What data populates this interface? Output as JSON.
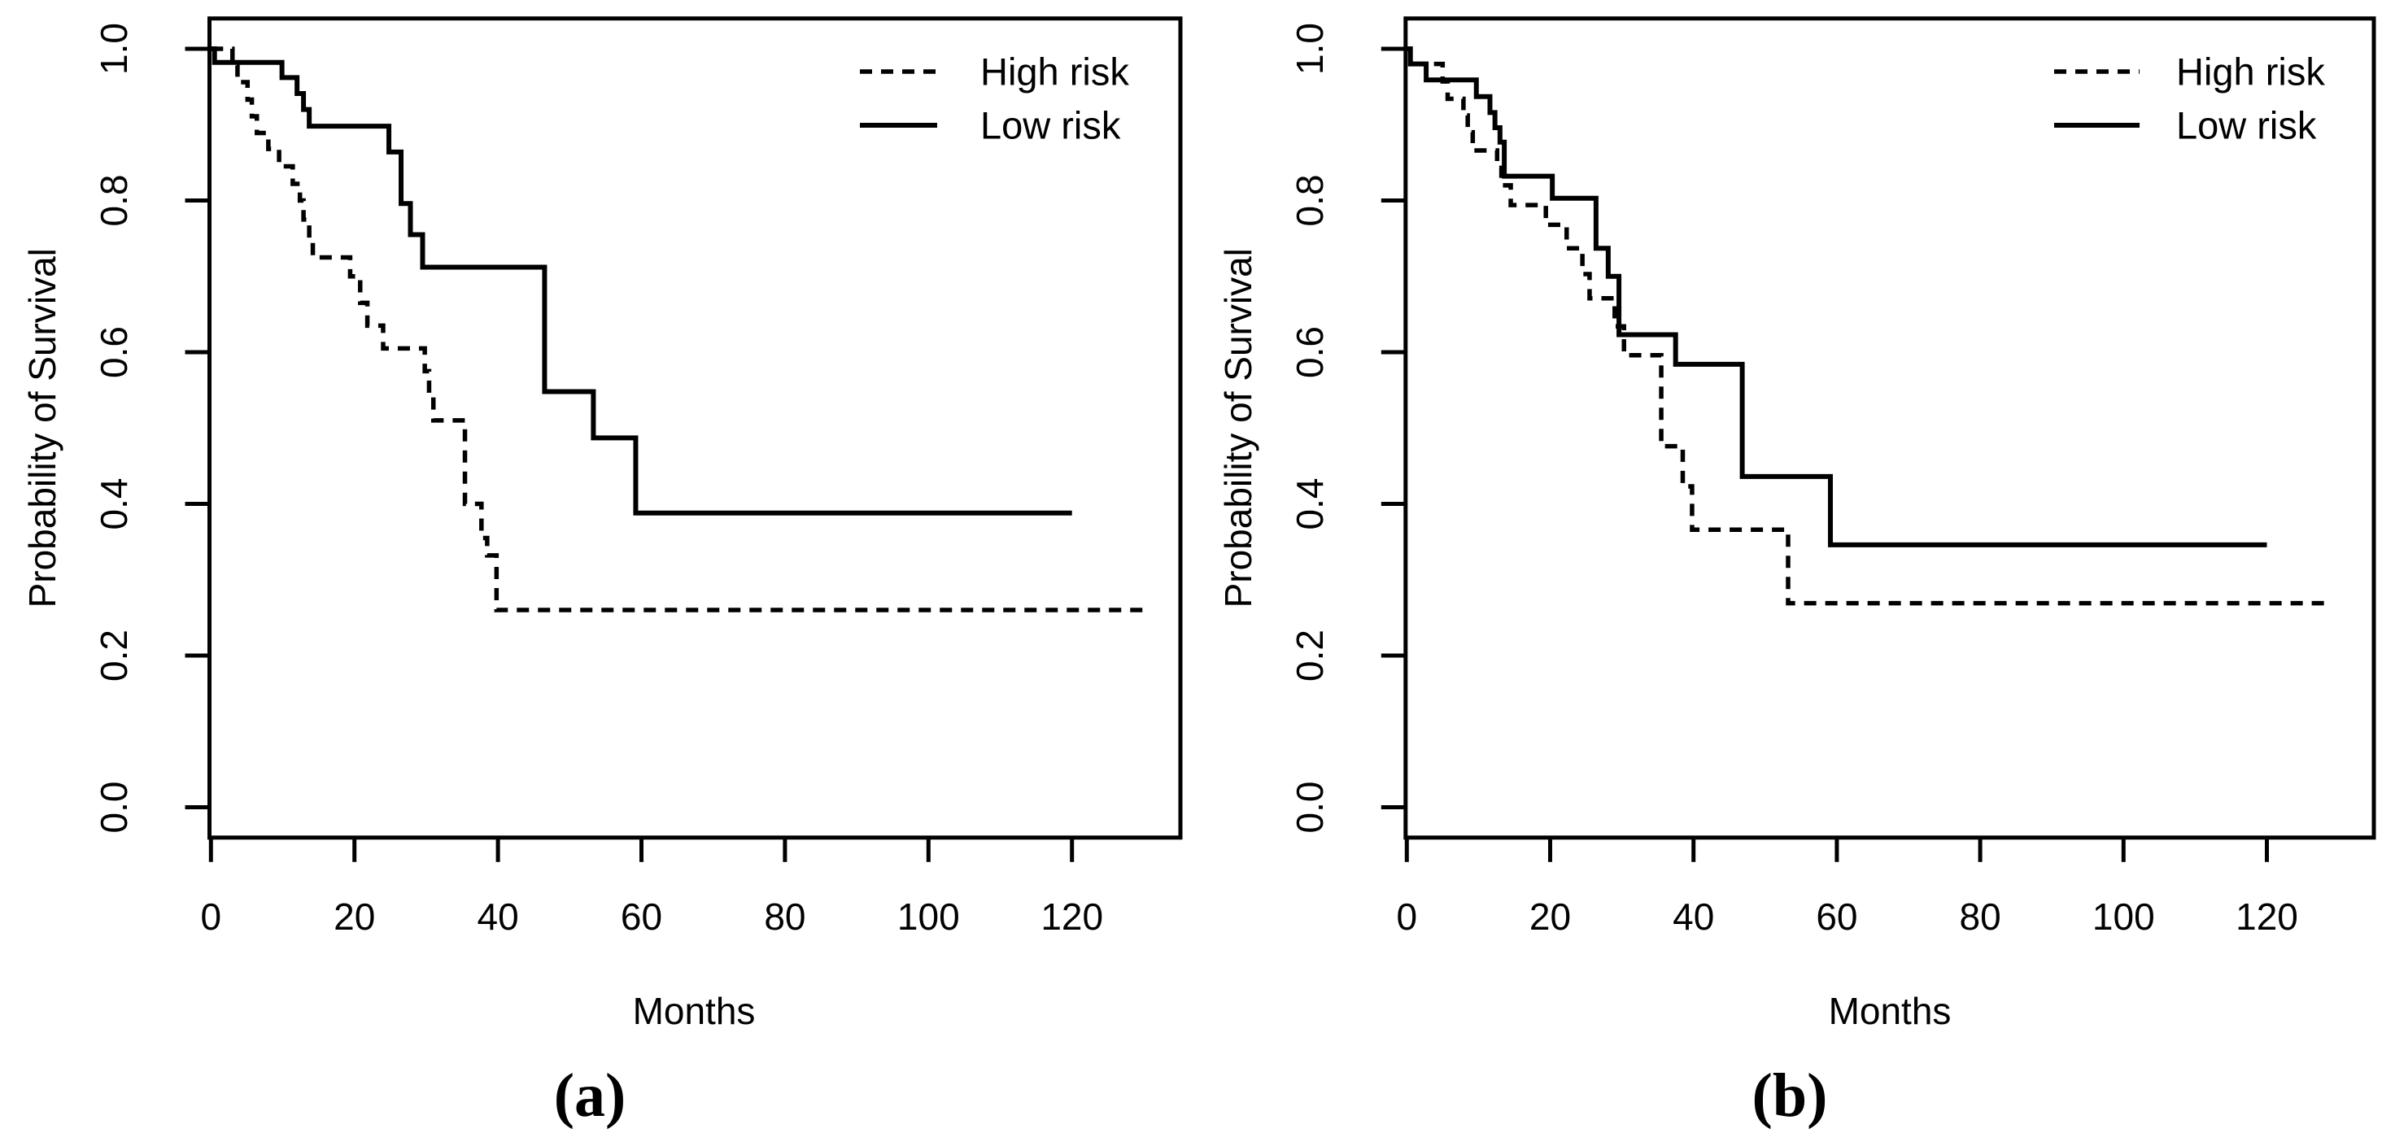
{
  "figure": {
    "background": "#ffffff",
    "ink_color": "#000000"
  },
  "chart_data": [
    {
      "type": "line",
      "subtype": "kaplan-meier-step",
      "panel_label": "(a)",
      "xlabel": "Months",
      "ylabel": "Probability of Survival",
      "x_ticks": [
        0,
        20,
        40,
        60,
        80,
        100,
        120
      ],
      "y_ticks": [
        0.0,
        0.2,
        0.4,
        0.6,
        0.8,
        1.0
      ],
      "xlim": [
        0,
        135
      ],
      "ylim": [
        0,
        1
      ],
      "grid": false,
      "legend_position": "top-right",
      "legend": [
        {
          "label": "High risk",
          "style": "dashed"
        },
        {
          "label": "Low risk",
          "style": "solid"
        }
      ],
      "series": [
        {
          "name": "High risk",
          "style": "dashed",
          "end": 130,
          "points": [
            [
              0,
              1.0
            ],
            [
              3,
              0.978
            ],
            [
              3.7,
              0.956
            ],
            [
              5.1,
              0.933
            ],
            [
              5.7,
              0.911
            ],
            [
              6.4,
              0.889
            ],
            [
              8,
              0.868
            ],
            [
              9.5,
              0.845
            ],
            [
              11.4,
              0.822
            ],
            [
              12.4,
              0.8
            ],
            [
              12.9,
              0.775
            ],
            [
              13.7,
              0.75
            ],
            [
              14.2,
              0.725
            ],
            [
              19.4,
              0.7
            ],
            [
              20.8,
              0.665
            ],
            [
              21.8,
              0.635
            ],
            [
              24,
              0.605
            ],
            [
              29.8,
              0.575
            ],
            [
              30.4,
              0.545
            ],
            [
              31,
              0.51
            ],
            [
              35.4,
              0.4
            ],
            [
              37.7,
              0.355
            ],
            [
              38.5,
              0.332
            ],
            [
              39.8,
              0.26
            ]
          ]
        },
        {
          "name": "Low risk",
          "style": "solid",
          "end": 120,
          "points": [
            [
              0,
              1.0
            ],
            [
              0.5,
              0.982
            ],
            [
              9.9,
              0.962
            ],
            [
              12,
              0.941
            ],
            [
              12.9,
              0.92
            ],
            [
              13.7,
              0.898
            ],
            [
              24.8,
              0.864
            ],
            [
              26.5,
              0.796
            ],
            [
              27.8,
              0.755
            ],
            [
              29.5,
              0.712
            ],
            [
              46.5,
              0.548
            ],
            [
              53.3,
              0.487
            ],
            [
              59.2,
              0.388
            ]
          ]
        }
      ]
    },
    {
      "type": "line",
      "subtype": "kaplan-meier-step",
      "panel_label": "(b)",
      "xlabel": "Months",
      "ylabel": "Probability of Survival",
      "x_ticks": [
        0,
        20,
        40,
        60,
        80,
        100,
        120
      ],
      "y_ticks": [
        0.0,
        0.2,
        0.4,
        0.6,
        0.8,
        1.0
      ],
      "xlim": [
        0,
        135
      ],
      "ylim": [
        0,
        1
      ],
      "grid": false,
      "legend_position": "top-right",
      "legend": [
        {
          "label": "High risk",
          "style": "dashed"
        },
        {
          "label": "Low risk",
          "style": "solid"
        }
      ],
      "series": [
        {
          "name": "High risk",
          "style": "dashed",
          "end": 128,
          "points": [
            [
              0,
              1.0
            ],
            [
              0.5,
              0.98
            ],
            [
              5,
              0.957
            ],
            [
              5.7,
              0.934
            ],
            [
              7.9,
              0.912
            ],
            [
              8.5,
              0.89
            ],
            [
              9.2,
              0.866
            ],
            [
              12.6,
              0.843
            ],
            [
              13.2,
              0.82
            ],
            [
              14.5,
              0.794
            ],
            [
              19.4,
              0.768
            ],
            [
              22.3,
              0.737
            ],
            [
              24.5,
              0.703
            ],
            [
              25.5,
              0.671
            ],
            [
              29,
              0.634
            ],
            [
              30.3,
              0.596
            ],
            [
              35.5,
              0.476
            ],
            [
              38.5,
              0.423
            ],
            [
              39.8,
              0.366
            ],
            [
              53.2,
              0.269
            ]
          ]
        },
        {
          "name": "Low risk",
          "style": "solid",
          "end": 120,
          "points": [
            [
              0,
              1.0
            ],
            [
              0.5,
              0.98
            ],
            [
              2.7,
              0.959
            ],
            [
              9.7,
              0.937
            ],
            [
              11.6,
              0.916
            ],
            [
              12.3,
              0.896
            ],
            [
              13,
              0.877
            ],
            [
              13.6,
              0.832
            ],
            [
              20.3,
              0.803
            ],
            [
              26.4,
              0.737
            ],
            [
              28.1,
              0.7
            ],
            [
              29.6,
              0.623
            ],
            [
              37.5,
              0.584
            ],
            [
              46.8,
              0.436
            ],
            [
              59.1,
              0.346
            ]
          ]
        }
      ]
    }
  ]
}
